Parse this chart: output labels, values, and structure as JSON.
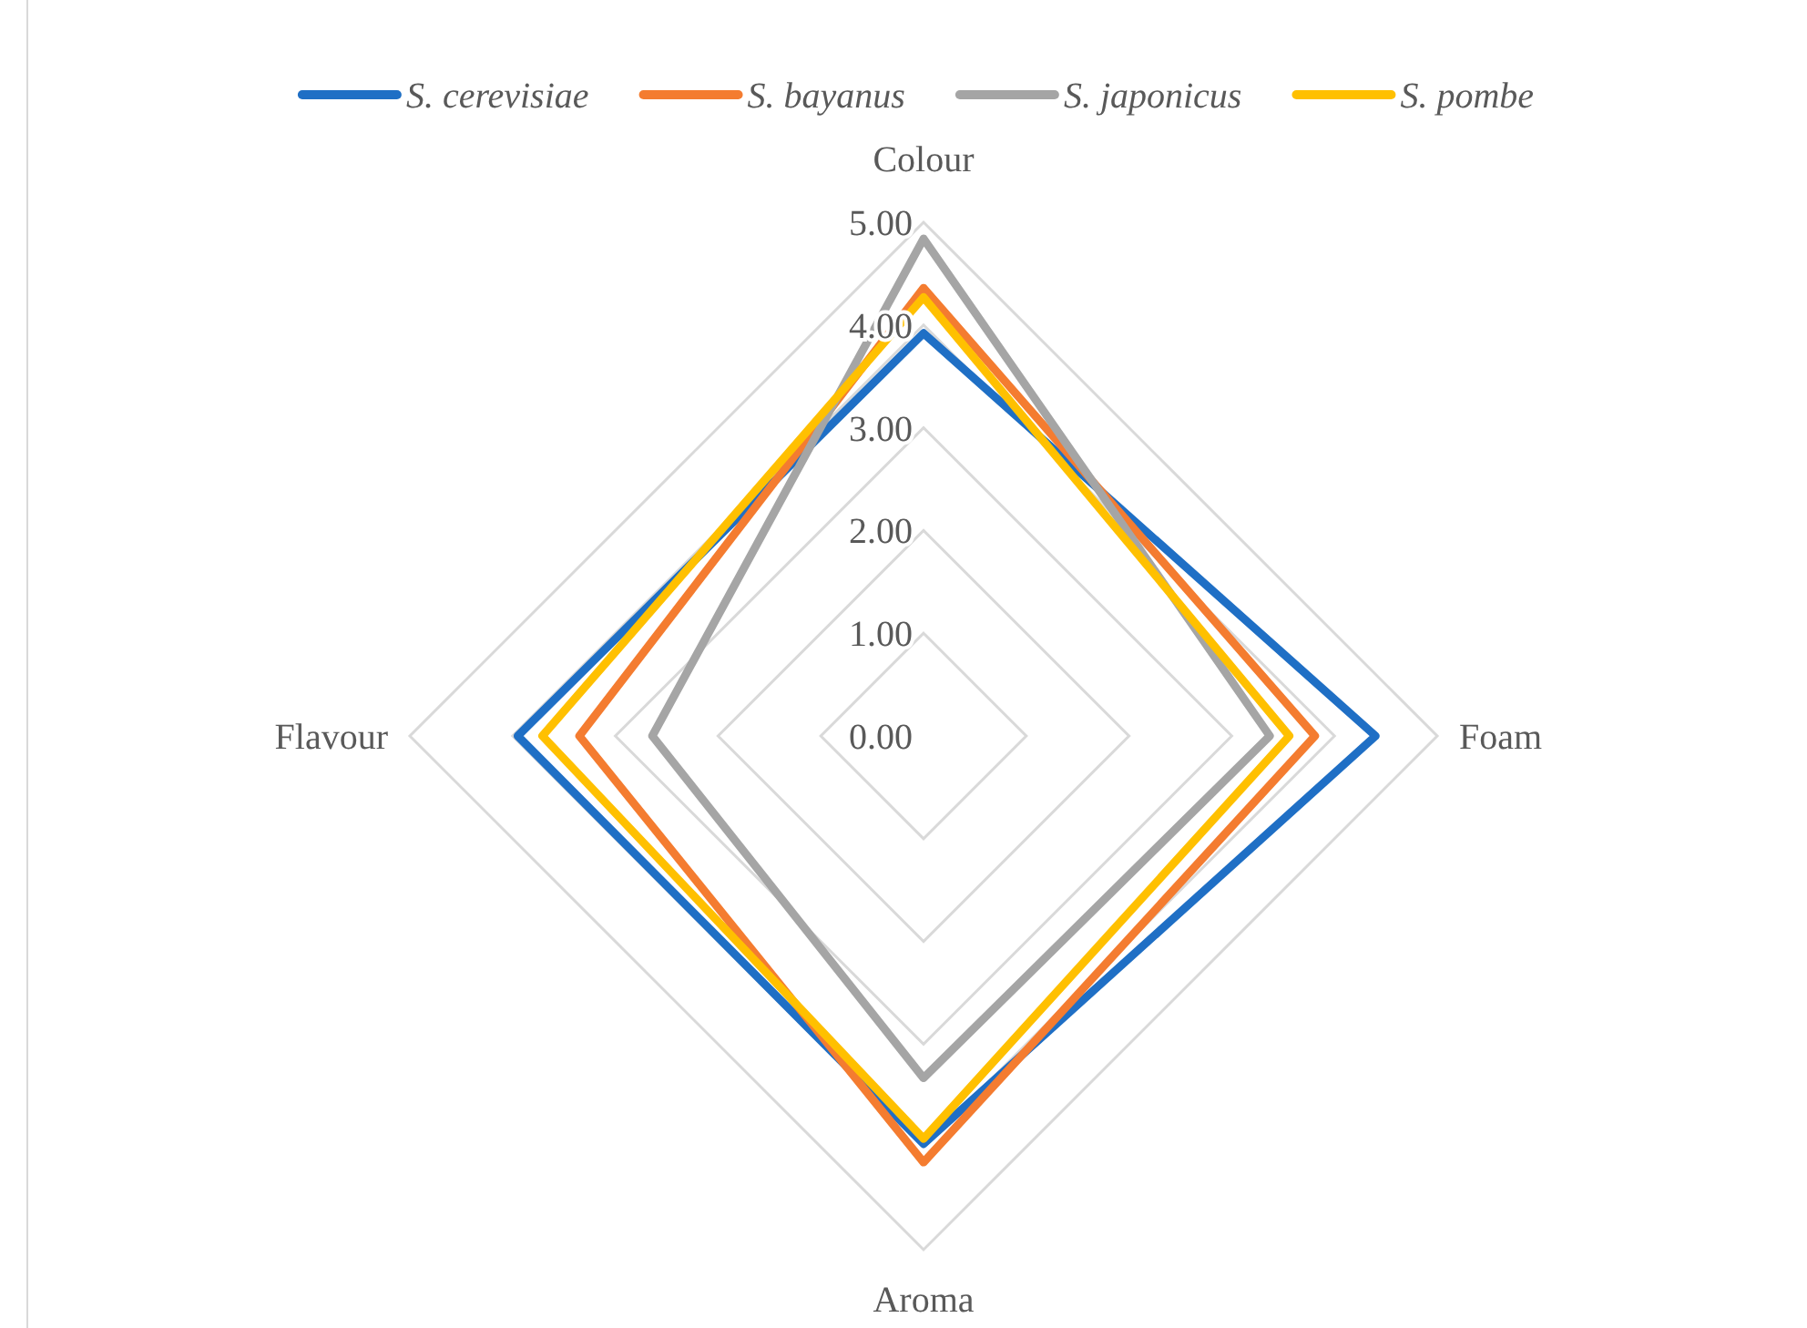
{
  "chart_data": {
    "type": "radar",
    "categories": [
      "Colour",
      "Foam",
      "Aroma",
      "Flavour"
    ],
    "series": [
      {
        "name": "S. cerevisiae",
        "color": "#1f6fc5",
        "values": [
          3.92,
          4.4,
          3.97,
          3.95
        ]
      },
      {
        "name": "S. bayanus",
        "color": "#f47c30",
        "values": [
          4.36,
          3.81,
          4.15,
          3.35
        ]
      },
      {
        "name": "S. japonicus",
        "color": "#a5a5a5",
        "values": [
          4.84,
          3.37,
          3.33,
          2.64
        ]
      },
      {
        "name": "S. pombe",
        "color": "#ffc000",
        "values": [
          4.27,
          3.56,
          3.92,
          3.71
        ]
      }
    ],
    "ylim": [
      0,
      5
    ],
    "yticks": [
      {
        "value": 0,
        "label": "0.00"
      },
      {
        "value": 1,
        "label": "1.00"
      },
      {
        "value": 2,
        "label": "2.00"
      },
      {
        "value": 3,
        "label": "3.00"
      },
      {
        "value": 4,
        "label": "4.00"
      },
      {
        "value": 5,
        "label": "5.00"
      }
    ],
    "grid": true,
    "legend": "top",
    "marker": "none"
  }
}
